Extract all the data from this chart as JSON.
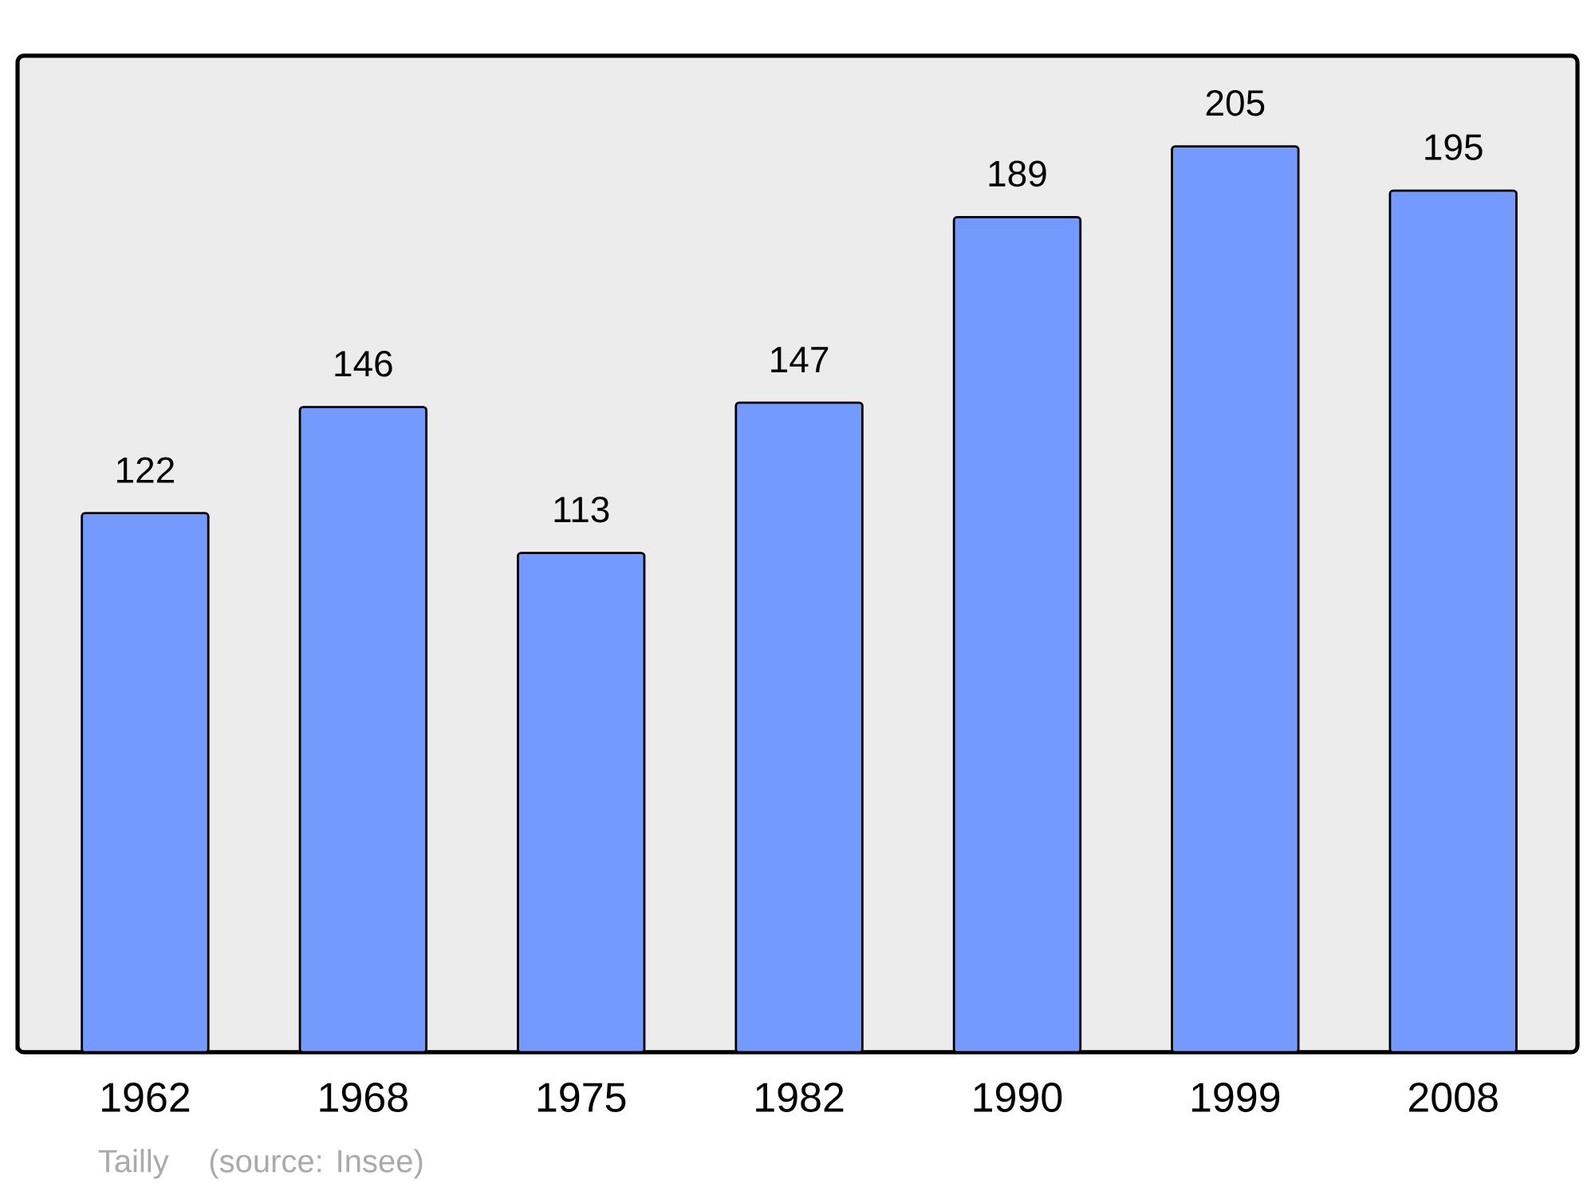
{
  "chart_data": {
    "type": "bar",
    "categories": [
      "1962",
      "1968",
      "1975",
      "1982",
      "1990",
      "1999",
      "2008"
    ],
    "values": [
      122,
      146,
      113,
      147,
      189,
      205,
      195
    ],
    "color": "#7499ff",
    "data_labels": true,
    "annotations": [
      "Tailly",
      "(source: Insee)"
    ]
  }
}
